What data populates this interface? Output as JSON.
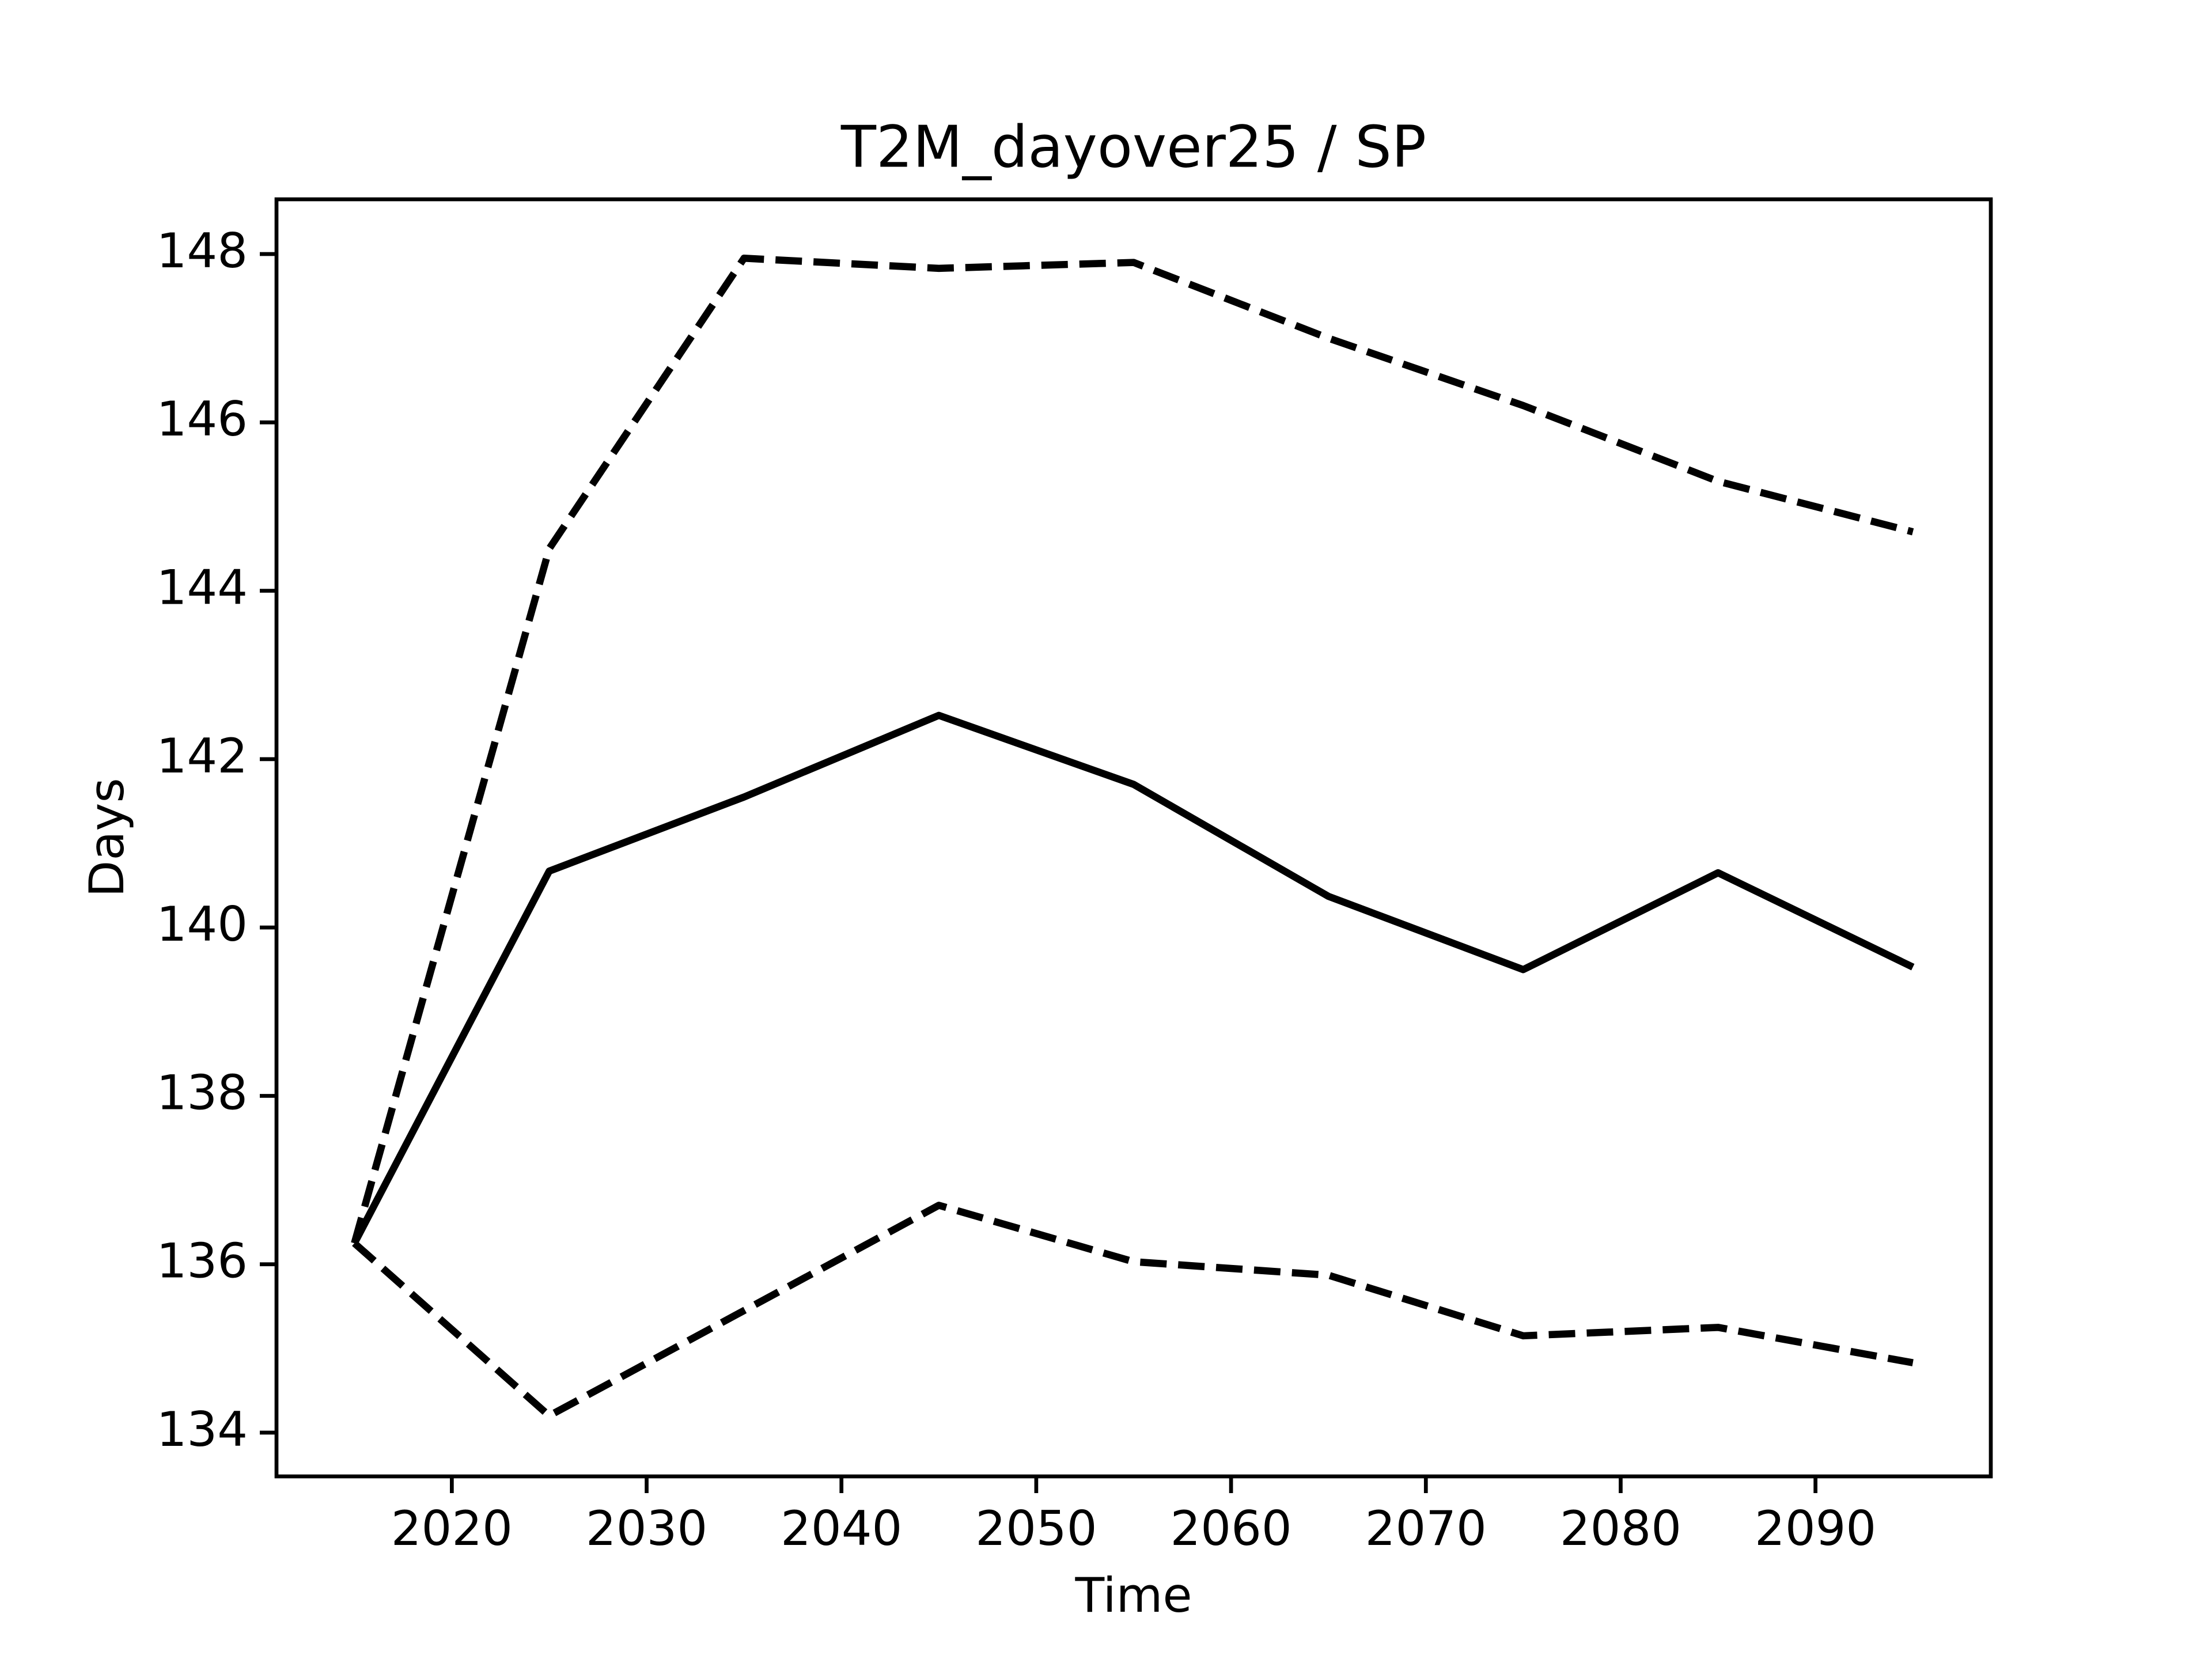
{
  "chart_data": {
    "type": "line",
    "title": "T2M_dayover25 / SP",
    "xlabel": "Time",
    "ylabel": "Days",
    "x": [
      2015,
      2025,
      2035,
      2045,
      2055,
      2065,
      2075,
      2085,
      2095
    ],
    "series": [
      {
        "color": "#000000",
        "linestyle": "solid",
        "values": [
          136.25,
          140.67,
          141.55,
          142.52,
          141.7,
          140.37,
          139.5,
          140.65,
          139.53
        ]
      },
      {
        "color": "#000000",
        "linestyle": "dashed",
        "values": [
          136.25,
          144.5,
          147.95,
          147.83,
          147.9,
          147.0,
          146.2,
          145.3,
          144.7
        ]
      },
      {
        "color": "#000000",
        "linestyle": "dashed",
        "values": [
          136.25,
          134.2,
          135.45,
          136.7,
          136.03,
          135.87,
          135.15,
          135.25,
          134.83
        ]
      }
    ],
    "xlim": [
      2011,
      2099
    ],
    "xticks": [
      2020,
      2030,
      2040,
      2050,
      2060,
      2070,
      2080,
      2090
    ],
    "ylim": [
      133.48,
      148.65
    ],
    "yticks": [
      134,
      136,
      138,
      140,
      142,
      144,
      146,
      148
    ],
    "grid": false
  }
}
